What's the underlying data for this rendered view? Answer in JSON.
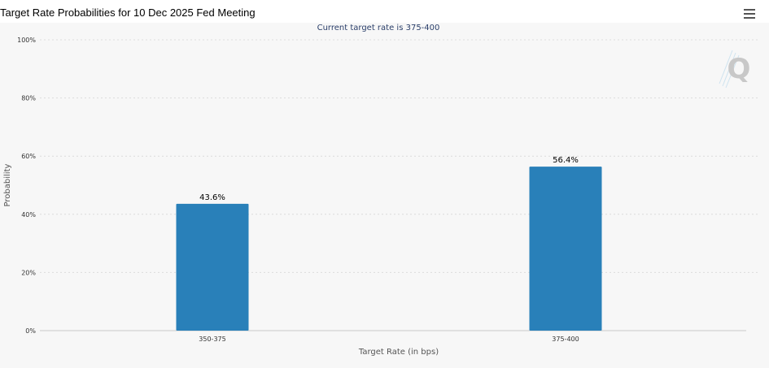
{
  "header": {
    "title": "Target Rate Probabilities for 10 Dec 2025 Fed Meeting",
    "menu_icon": "hamburger-menu-icon"
  },
  "watermark": {
    "text": "Q"
  },
  "chart_data": {
    "type": "bar",
    "title": "Target Rate Probabilities for 10 Dec 2025 Fed Meeting",
    "subtitle": "Current target rate is 375-400",
    "categories": [
      "350-375",
      "375-400"
    ],
    "values": [
      43.6,
      56.4
    ],
    "data_labels": [
      "43.6%",
      "56.4%"
    ],
    "xlabel": "Target Rate (in bps)",
    "ylabel": "Probability",
    "ylim": [
      0,
      100
    ],
    "yticks": [
      0,
      20,
      40,
      60,
      80,
      100
    ],
    "ytick_labels": [
      "0%",
      "20%",
      "40%",
      "60%",
      "80%",
      "100%"
    ],
    "grid": true,
    "bar_color": "#2980b9",
    "legend": "none"
  }
}
